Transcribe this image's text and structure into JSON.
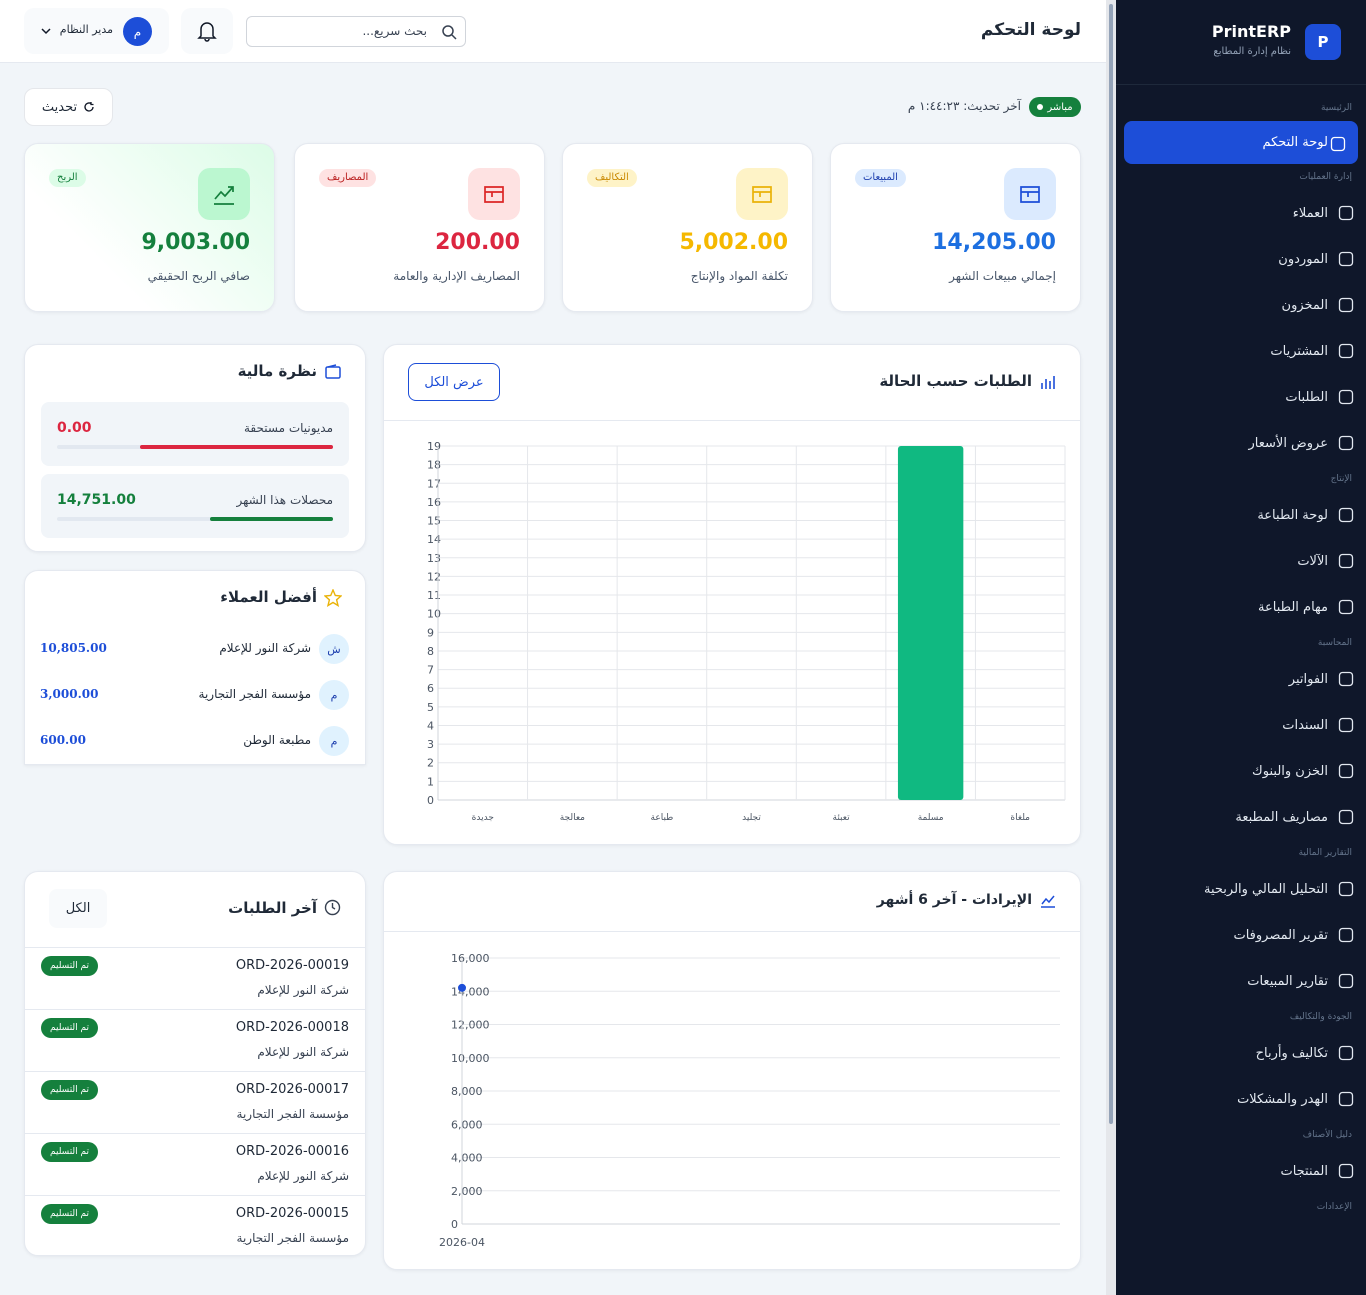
{
  "sidebar": {
    "brand": "PrintERP",
    "subtitle": "نظام إدارة المطابع",
    "logo": "P",
    "sections": [
      {
        "label": "الرئيسية",
        "items": [
          "لوحة التحكم"
        ]
      },
      {
        "label": "إدارة العمليات",
        "items": [
          "العملاء",
          "الموردون",
          "المخزون",
          "المشتريات",
          "الطلبات",
          "عروض الأسعار"
        ]
      },
      {
        "label": "الإنتاج",
        "items": [
          "لوحة الطباعة",
          "الآلات",
          "مهام الطباعة"
        ]
      },
      {
        "label": "المحاسبة",
        "items": [
          "الفواتير",
          "السندات",
          "الخزن والبنوك",
          "مصاريف المطبعة"
        ]
      },
      {
        "label": "التقارير المالية",
        "items": [
          "التحليل المالي والربحية",
          "تقرير المصروفات",
          "تقارير المبيعات"
        ]
      },
      {
        "label": "الجودة والتكاليف",
        "items": [
          "تكاليف وأرباح",
          "الهدر والمشكلات"
        ]
      },
      {
        "label": "دليل الأصناف",
        "items": [
          "المنتجات"
        ]
      },
      {
        "label": "الإعدادات",
        "items": []
      }
    ]
  },
  "header": {
    "title": "لوحة التحكم",
    "search_placeholder": "بحث سريع...",
    "user": "مدير النظام",
    "avatar": "م"
  },
  "status": {
    "live": "مباشر",
    "last_update": "آخر تحديث: ١:٤٤:٢٣ م",
    "refresh": "تحديث"
  },
  "kpis": [
    {
      "badge": "المبيعات",
      "value": "14,205.00",
      "label": "إجمالي مبيعات الشهر"
    },
    {
      "badge": "التكاليف",
      "value": "5,002.00",
      "label": "تكلفة المواد والإنتاج"
    },
    {
      "badge": "المصاريف",
      "value": "200.00",
      "label": "المصاريف الإدارية والعامة"
    },
    {
      "badge": "الربح",
      "value": "9,003.00",
      "label": "صافي الربح الحقيقي"
    }
  ],
  "financial": {
    "title": "نظرة مالية",
    "rows": [
      {
        "label": "مديونيات مستحقة",
        "value": "0.00"
      },
      {
        "label": "محصلات هذا الشهر",
        "value": "14,751.00"
      }
    ]
  },
  "top_customers": {
    "title": "أفضل العملاء",
    "rows": [
      {
        "initial": "ش",
        "name": "شركة النور للإعلام",
        "amount": "10,805.00"
      },
      {
        "initial": "م",
        "name": "مؤسسة الفجر التجارية",
        "amount": "3,000.00"
      },
      {
        "initial": "م",
        "name": "مطبعة الوطن",
        "amount": "600.00"
      }
    ]
  },
  "recent_orders": {
    "title": "آخر الطلبات",
    "button": "الكل",
    "rows": [
      {
        "id": "ORD-2026-00019",
        "customer": "شركة النور للإعلام",
        "status": "تم التسليم"
      },
      {
        "id": "ORD-2026-00018",
        "customer": "شركة النور للإعلام",
        "status": "تم التسليم"
      },
      {
        "id": "ORD-2026-00017",
        "customer": "مؤسسة الفجر التجارية",
        "status": "تم التسليم"
      },
      {
        "id": "ORD-2026-00016",
        "customer": "شركة النور للإعلام",
        "status": "تم التسليم"
      },
      {
        "id": "ORD-2026-00015",
        "customer": "مؤسسة الفجر التجارية",
        "status": "تم التسليم"
      }
    ]
  },
  "chart_data": [
    {
      "type": "bar",
      "title": "الطلبات حسب الحالة",
      "button": "عرض الكل",
      "categories": [
        "جديدة",
        "معالجة",
        "طباعة",
        "تجليد",
        "تعبئة",
        "مسلمة",
        "ملغاة"
      ],
      "values": [
        0,
        0,
        0,
        0,
        0,
        19,
        0
      ],
      "color": "#10b981",
      "ylim": [
        0,
        19
      ],
      "yticks": [
        0,
        1,
        2,
        3,
        4,
        5,
        6,
        7,
        8,
        9,
        10,
        11,
        12,
        13,
        14,
        15,
        16,
        17,
        18,
        19
      ],
      "grid": true
    },
    {
      "type": "line",
      "title": "الإيرادات - آخر 6 أشهر",
      "x": [
        "2026-04"
      ],
      "values": [
        14205
      ],
      "color": "#1d4ed8",
      "ylim": [
        0,
        16000
      ],
      "yticks": [
        0,
        {
          "value": 2000,
          "label": "2,000"
        },
        {
          "value": 4000,
          "label": "4,000"
        },
        {
          "value": 6000,
          "label": "6,000"
        },
        {
          "value": 8000,
          "label": "8,000"
        },
        {
          "value": 10000,
          "label": "10,000"
        },
        {
          "value": 12000,
          "label": "12,000"
        },
        {
          "value": 14000,
          "label": "14,000"
        },
        {
          "value": 16000,
          "label": "16,000"
        }
      ],
      "grid": true
    }
  ]
}
